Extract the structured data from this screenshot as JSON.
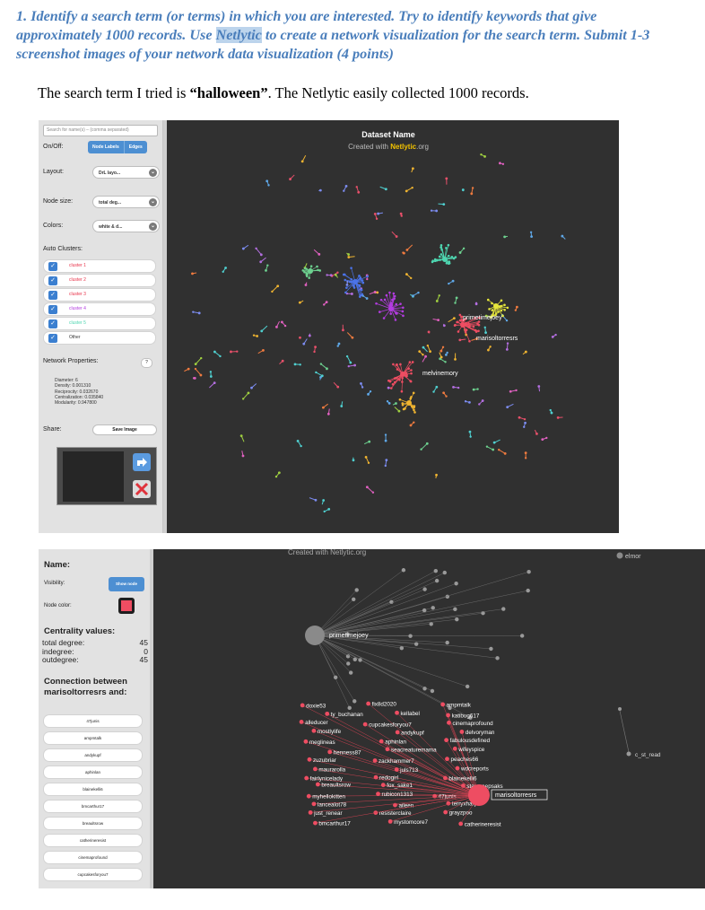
{
  "task": {
    "pre": "1. Identify a search term (or terms) in which you are interested. Try to identify keywords that give approximately 1000 records. Use ",
    "highlight": "Netlytic",
    "post": " to create a network visualization for the search term. Submit 1-3 screenshot images of your network data visualization  (4 points)"
  },
  "answer": {
    "pre": "The search term I tried is ",
    "term": "“halloween”",
    "post": ". The Netlytic easily collected 1000 records."
  },
  "shot1": {
    "search_placeholder": "Search for name(s) – (comma separated)",
    "onoff_label": "On/Off:",
    "node_labels_button": "Node Labels",
    "edges_button": "Edges",
    "layout_label": "Layout:",
    "layout_value": "DrL layo...",
    "node_size_label": "Node size:",
    "node_size_value": "total deg...",
    "colors_label": "Colors:",
    "colors_value": "white & d...",
    "auto_clusters_label": "Auto Clusters:",
    "clusters": [
      {
        "label": "cluster 1",
        "color": "#e8334a"
      },
      {
        "label": "cluster 2",
        "color": "#e8334a"
      },
      {
        "label": "cluster 3",
        "color": "#e8334a"
      },
      {
        "label": "cluster 4",
        "color": "#b33ce0"
      },
      {
        "label": "cluster 5",
        "color": "#4ed6b0"
      },
      {
        "label": "Other",
        "color": "#333333"
      }
    ],
    "network_properties_label": "Network Properties:",
    "help_button": "?",
    "properties": {
      "diameter": "Diameter: 6",
      "density": "Density: 0.001310",
      "reciprocity": "Reciprocity: 0.032670",
      "centralization": "Centralization: 0.035840",
      "modularity": "Modularity: 0.947800"
    },
    "share_label": "Share:",
    "save_image_button": "Save Image",
    "graph_title": "Dataset Name",
    "graph_credit_pre": "Created with ",
    "graph_credit_brand": "Netlytic",
    "graph_credit_post": ".org",
    "node_labels": {
      "primetimejoey": "primetimejoey",
      "marisoltorresrs": "marisoltorresrs",
      "melvinemory": "melvinemory"
    },
    "colors": {
      "accent": "#4d8fd2",
      "graph_bg": "#303030",
      "brand": "#f2c200"
    }
  },
  "shot2": {
    "name_label": "Name:",
    "visibility_label": "Visibility:",
    "show_node_button": "Show node",
    "node_color_label": "Node color:",
    "node_color": "#ee4d62",
    "centrality_title": "Centrality values:",
    "centrality": [
      {
        "label": "total degree:",
        "value": "45"
      },
      {
        "label": "indegree:",
        "value": "0"
      },
      {
        "label": "outdegree:",
        "value": "45"
      }
    ],
    "connection_title": "Connection between marisoltorresrs and:",
    "connections": [
      "47junis",
      "ampmtalk",
      "andykupf",
      "aphinlan",
      "blainekelli6",
      "bmcarthur17",
      "breaultsrow",
      "catherineresist",
      "cinemaprofound",
      "cupcakesforyou7"
    ],
    "graph_credit": "Created with Netlytic.org",
    "top_right_label": "elmor",
    "hub_labels": {
      "primetimejoey": "primetimejoey",
      "marisoltorresrs": "marisoltorresrs"
    },
    "outlier_label": "c_st_read",
    "graph_nodes": [
      "doxie53",
      "fix8d2020",
      "ampmtalk",
      "ty_buchanan",
      "kellabel",
      "katibug617",
      "alleducer",
      "cupcakesforyou7",
      "cinemaprofound",
      "mostlylife",
      "andykupf",
      "delvoryman",
      "meglineas",
      "aphinlan",
      "fabulousdefined",
      "henness87",
      "seacreaturemama",
      "wifeyspice",
      "zuzubriar",
      "zackhammer7",
      "peaches66",
      "maurarolla",
      "juls713",
      "wdcreports",
      "fairlynicelady",
      "redogirl",
      "blainekelli6",
      "breaultsrow",
      "fox_sake1",
      "staycreepsaks",
      "myhellokitten",
      "rubicon1313",
      "47junis",
      "lancealot78",
      "aileen",
      "terryxharper",
      "just_renear",
      "resisterclaire",
      "grayzpoo",
      "bmcarthur17",
      "mystomcore7",
      "catherineresist"
    ]
  }
}
